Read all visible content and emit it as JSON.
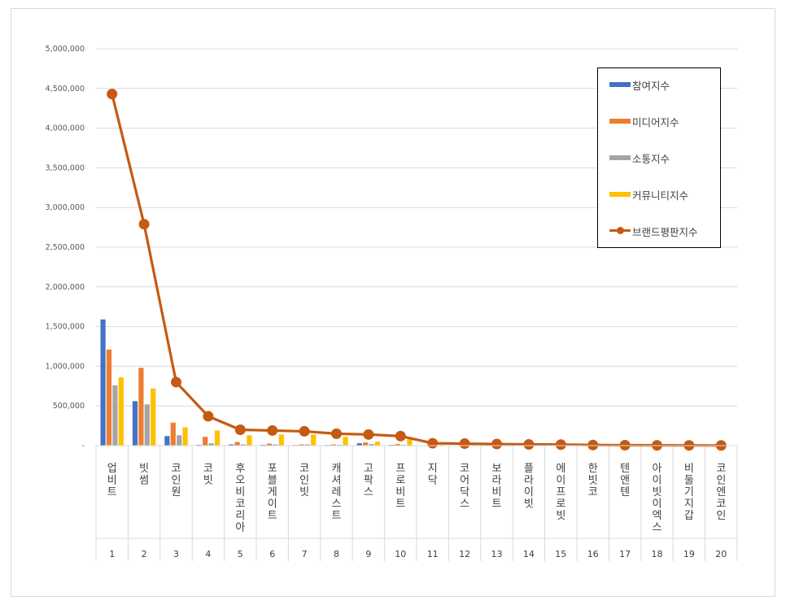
{
  "chart_data": {
    "type": "bar",
    "title": "",
    "xlabel": "",
    "ylabel": "",
    "ylim": [
      0,
      5000000
    ],
    "yticks": [
      "-",
      "500,000",
      "1,000,000",
      "1,500,000",
      "2,000,000",
      "2,500,000",
      "3,000,000",
      "3,500,000",
      "4,000,000",
      "4,500,000",
      "5,000,000"
    ],
    "grid": true,
    "legend_position": "top-right",
    "categories": [
      "업비트",
      "빗썸",
      "코인원",
      "코빗",
      "후오비코리아",
      "포블게이트",
      "코인빗",
      "캐셔레스트",
      "고팍스",
      "프로비트",
      "지닥",
      "코어닥스",
      "보라비트",
      "플라이빗",
      "에이프로빗",
      "한빗코",
      "텐앤텐",
      "아이빗이엑스",
      "비둘기지갑",
      "코인엔코인"
    ],
    "ranks": [
      "1",
      "2",
      "3",
      "4",
      "5",
      "6",
      "7",
      "8",
      "9",
      "10",
      "11",
      "12",
      "13",
      "14",
      "15",
      "16",
      "17",
      "18",
      "19",
      "20"
    ],
    "series": [
      {
        "name": "참여지수",
        "kind": "bar",
        "color": "#4472c4",
        "values": [
          1590000,
          560000,
          120000,
          10000,
          15000,
          10000,
          8000,
          8000,
          30000,
          10000,
          5000,
          5000,
          5000,
          3000,
          3000,
          2000,
          2000,
          2000,
          2000,
          2000
        ]
      },
      {
        "name": "미디어지수",
        "kind": "bar",
        "color": "#ed7d31",
        "values": [
          1210000,
          980000,
          290000,
          110000,
          45000,
          25000,
          15000,
          15000,
          40000,
          20000,
          8000,
          8000,
          8000,
          5000,
          5000,
          3000,
          3000,
          3000,
          3000,
          3000
        ]
      },
      {
        "name": "소통지수",
        "kind": "bar",
        "color": "#a5a5a5",
        "values": [
          760000,
          520000,
          130000,
          30000,
          15000,
          15000,
          15000,
          10000,
          20000,
          10000,
          5000,
          5000,
          5000,
          3000,
          3000,
          2000,
          2000,
          2000,
          2000,
          2000
        ]
      },
      {
        "name": "커뮤니티지수",
        "kind": "bar",
        "color": "#ffc000",
        "values": [
          860000,
          720000,
          230000,
          190000,
          130000,
          140000,
          140000,
          110000,
          50000,
          80000,
          10000,
          10000,
          10000,
          8000,
          6000,
          4000,
          3000,
          3000,
          3000,
          3000
        ]
      },
      {
        "name": "브랜드평판지수",
        "kind": "line",
        "color": "#c55a11",
        "values": [
          4430000,
          2790000,
          800000,
          370000,
          200000,
          190000,
          180000,
          150000,
          140000,
          120000,
          30000,
          25000,
          20000,
          15000,
          13000,
          8000,
          5000,
          4000,
          3000,
          2000
        ]
      }
    ]
  }
}
